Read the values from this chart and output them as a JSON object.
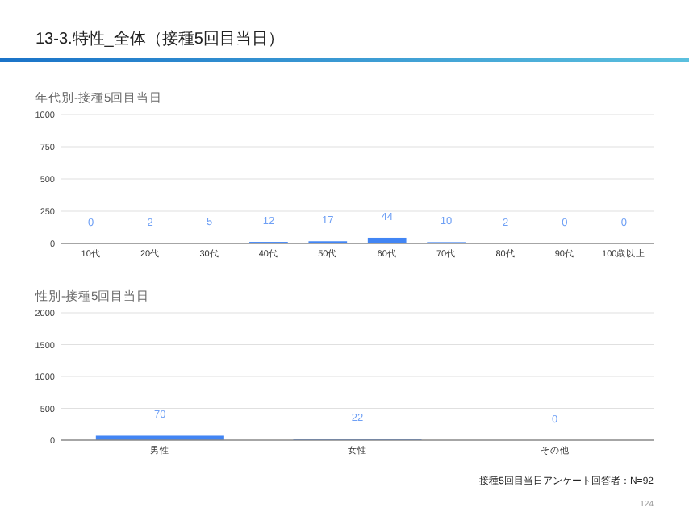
{
  "chart_data": [
    {
      "type": "bar",
      "title": "年代別-接種5回目当日",
      "categories": [
        "10代",
        "20代",
        "30代",
        "40代",
        "50代",
        "60代",
        "70代",
        "80代",
        "90代",
        "100歳以上"
      ],
      "values": [
        0,
        2,
        5,
        12,
        17,
        44,
        10,
        2,
        0,
        0
      ],
      "color": "#4285f4",
      "ylim": [
        0,
        1000
      ],
      "yticks": [
        0,
        250,
        500,
        750,
        1000
      ],
      "grid": "y",
      "data_labels": true,
      "annotations": [
        "13-3.特性_全体（接種5回目当日）"
      ]
    },
    {
      "type": "bar",
      "title": "性別-接種5回目当日",
      "categories": [
        "男性",
        "女性",
        "その他"
      ],
      "values": [
        70,
        22,
        0
      ],
      "color": "#4285f4",
      "ylim": [
        0,
        2000
      ],
      "yticks": [
        0,
        500,
        1000,
        1500,
        2000
      ],
      "grid": "y",
      "data_labels": true,
      "annotations": [
        "接種5回目当日アンケート回答者：N=92",
        "124"
      ]
    }
  ]
}
